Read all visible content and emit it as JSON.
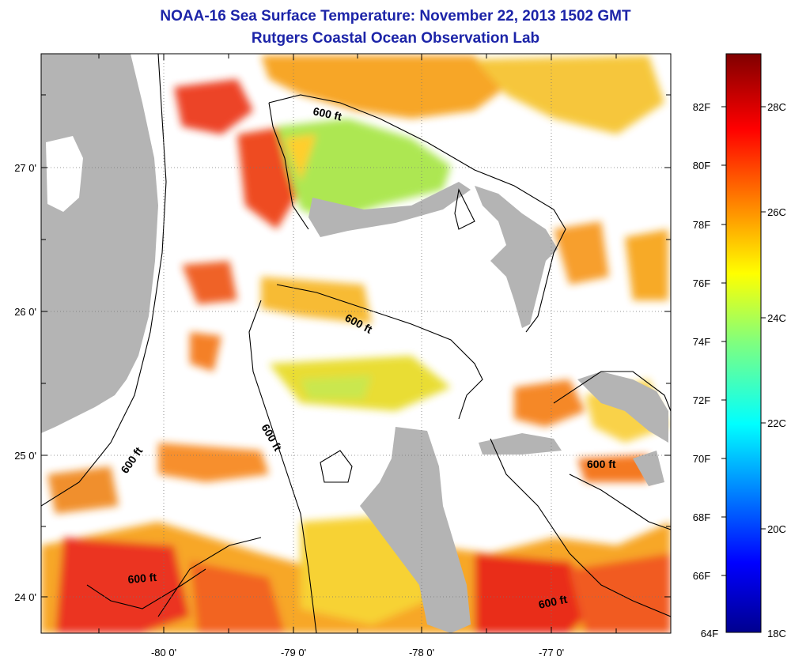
{
  "title": {
    "line1": "NOAA-16 Sea Surface Temperature:  November 22, 2013 1502 GMT",
    "line2": "Rutgers Coastal Ocean Observation Lab"
  },
  "map": {
    "lon_ticks": [
      "-80 0'",
      "-79 0'",
      "-78 0'",
      "-77 0'"
    ],
    "lat_ticks": [
      "27 0'",
      "26 0'",
      "25 0'",
      "24 0'"
    ],
    "contour_labels": [
      "600 ft",
      "600 ft",
      "600 ft",
      "600 ft",
      "600 ft",
      "600 ft"
    ],
    "colors": {
      "land": "#b4b4b4",
      "cloud_nodata": "#ffffff",
      "frame": "#000000",
      "title": "#1c24a8"
    }
  },
  "colorbar": {
    "fahrenheit_labels": [
      "82F",
      "80F",
      "78F",
      "76F",
      "74F",
      "72F",
      "70F",
      "68F",
      "66F",
      "64F"
    ],
    "celsius_labels": [
      "28C",
      "26C",
      "24C",
      "22C",
      "20C",
      "18C"
    ],
    "colormap": "jet",
    "range_c": [
      18,
      29.5
    ]
  }
}
